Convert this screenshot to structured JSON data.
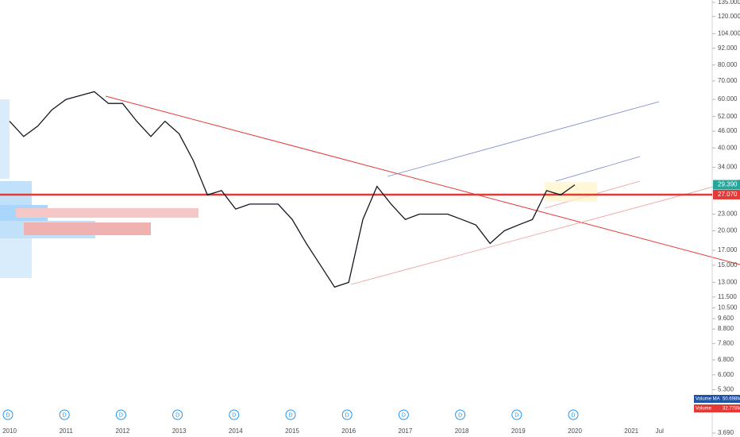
{
  "chart_data": {
    "type": "line",
    "log_scale": true,
    "color": "#131722",
    "categories": [
      "2010",
      null,
      null,
      null,
      "2011",
      null,
      null,
      null,
      "2012",
      null,
      null,
      null,
      "2013",
      null,
      null,
      null,
      "2014",
      null,
      null,
      null,
      "2015",
      null,
      null,
      null,
      "2016",
      null,
      null,
      null,
      "2017",
      null,
      null,
      null,
      "2018",
      null,
      null,
      null,
      "2019",
      null,
      null,
      null,
      "2020",
      null,
      null,
      null,
      "2021",
      null,
      "Jul"
    ],
    "values": [
      50,
      44,
      48,
      55,
      60,
      62,
      64,
      58,
      58,
      50,
      44,
      50,
      45,
      36,
      27,
      28,
      24,
      25,
      25,
      25,
      22,
      18,
      15,
      12.5,
      13,
      22,
      29,
      25,
      22,
      23,
      23,
      23,
      22,
      21,
      18,
      20,
      21,
      22,
      28,
      27,
      29.39,
      null,
      null,
      null,
      null,
      null,
      null
    ],
    "ylim": [
      3.69,
      135
    ],
    "yticks": [
      {
        "value": 135,
        "label": "135.000"
      },
      {
        "value": 120,
        "label": "120.000"
      },
      {
        "value": 104,
        "label": "104.000"
      },
      {
        "value": 92,
        "label": "92.000"
      },
      {
        "value": 80,
        "label": "80.000"
      },
      {
        "value": 70,
        "label": "70.000"
      },
      {
        "value": 60,
        "label": "60.000"
      },
      {
        "value": 52,
        "label": "52.000"
      },
      {
        "value": 46,
        "label": "46.000"
      },
      {
        "value": 40,
        "label": "40.000"
      },
      {
        "value": 34,
        "label": "34.000"
      },
      {
        "value": 23,
        "label": "23.000"
      },
      {
        "value": 20,
        "label": "20.000"
      },
      {
        "value": 17,
        "label": "17.000"
      },
      {
        "value": 15,
        "label": "15.000"
      },
      {
        "value": 13,
        "label": "13.000"
      },
      {
        "value": 11.5,
        "label": "11.500"
      },
      {
        "value": 10.5,
        "label": "10.500"
      },
      {
        "value": 9.6,
        "label": "9.600"
      },
      {
        "value": 8.8,
        "label": "8.800"
      },
      {
        "value": 7.8,
        "label": "7.800"
      },
      {
        "value": 6.8,
        "label": "6.800"
      },
      {
        "value": 6,
        "label": "6.000"
      },
      {
        "value": 5.3,
        "label": "5.300"
      },
      {
        "value": 3.69,
        "label": "3.690"
      }
    ],
    "last_price": {
      "value": 29.39,
      "label": "29.390",
      "color": "#26a69a"
    },
    "horizontal_line": {
      "value": 27.07,
      "label": "27.070",
      "color": "#e53935"
    },
    "volume_ma_label": {
      "name": "Volume MA",
      "value": "50.698M",
      "color": "#1e53a8"
    },
    "volume_label": {
      "name": "Volume",
      "value": "32.778M",
      "color": "#e53935"
    },
    "dividend_markers": [
      "D",
      "D",
      "D",
      "D",
      "D",
      "D",
      "D",
      "D",
      "D",
      "D",
      "D"
    ]
  }
}
